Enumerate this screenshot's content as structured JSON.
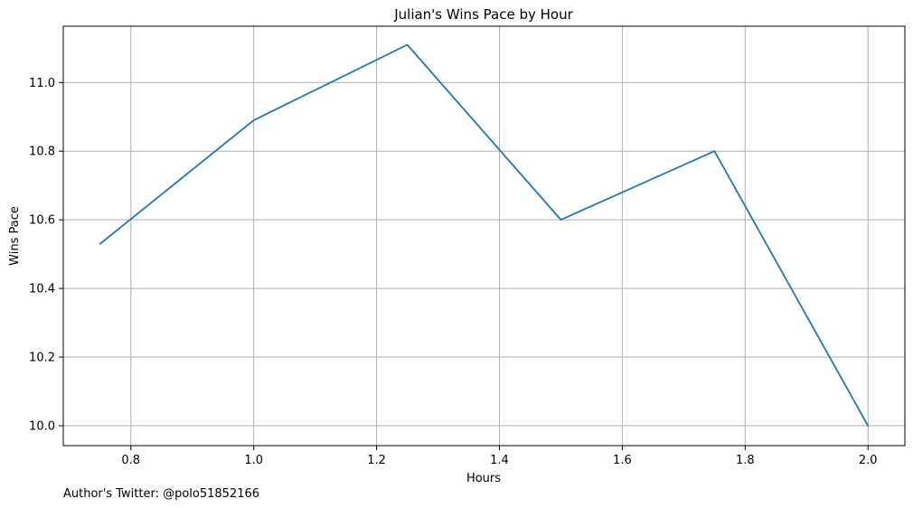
{
  "chart_data": {
    "type": "line",
    "title": "Julian's Wins Pace by Hour",
    "xlabel": "Hours",
    "ylabel": "Wins Pace",
    "xlim": [
      0.69,
      2.06
    ],
    "ylim": [
      9.942,
      11.164
    ],
    "xticks": [
      0.8,
      1.0,
      1.2,
      1.4,
      1.6,
      1.8,
      2.0
    ],
    "xtick_labels": [
      "0.8",
      "1.0",
      "1.2",
      "1.4",
      "1.6",
      "1.8",
      "2.0"
    ],
    "yticks": [
      10.0,
      10.2,
      10.4,
      10.6,
      10.8,
      11.0
    ],
    "ytick_labels": [
      "10.0",
      "10.2",
      "10.4",
      "10.6",
      "10.8",
      "11.0"
    ],
    "grid": true,
    "legend": "none",
    "series": [
      {
        "color": "#1f77b4",
        "x": [
          0.75,
          1.0,
          1.25,
          1.5,
          1.75,
          2.0
        ],
        "y": [
          10.53,
          10.89,
          11.11,
          10.6,
          10.8,
          10.0
        ]
      }
    ]
  },
  "footer": {
    "text": "Author's Twitter: @polo51852166"
  },
  "colors": {
    "line": "#1f77b4",
    "grid": "#b0b0b0",
    "axes": "#000000"
  }
}
